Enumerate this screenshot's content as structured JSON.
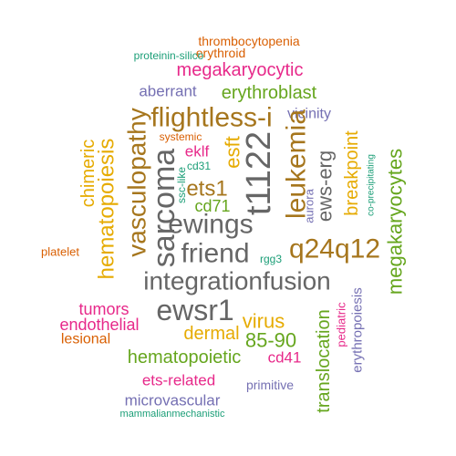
{
  "colors": {
    "orange": "#d95f02",
    "green": "#1b9e77",
    "magenta": "#e7298a",
    "purple": "#7570b3",
    "olive": "#66a61e",
    "gold": "#e6ab02",
    "brown": "#a6761d",
    "gray": "#666666"
  },
  "words": [
    {
      "text": "thrombocytopenia",
      "color": "orange"
    },
    {
      "text": "erythroid",
      "color": "orange"
    },
    {
      "text": "proteinin-silico",
      "color": "green"
    },
    {
      "text": "megakaryocytic",
      "color": "magenta"
    },
    {
      "text": "aberrant",
      "color": "purple"
    },
    {
      "text": "erythroblast",
      "color": "olive"
    },
    {
      "text": "flightless-i",
      "color": "brown"
    },
    {
      "text": "vicinity",
      "color": "purple"
    },
    {
      "text": "vasculopathy",
      "color": "brown"
    },
    {
      "text": "systemic",
      "color": "orange"
    },
    {
      "text": "eklf",
      "color": "magenta"
    },
    {
      "text": "esft",
      "color": "gold"
    },
    {
      "text": "t1122",
      "color": "gray"
    },
    {
      "text": "leukemia",
      "color": "brown"
    },
    {
      "text": "ews-erg",
      "color": "gray"
    },
    {
      "text": "breakpoint",
      "color": "gold"
    },
    {
      "text": "megakaryocytes",
      "color": "olive"
    },
    {
      "text": "co-precipitating",
      "color": "green"
    },
    {
      "text": "cd31",
      "color": "green"
    },
    {
      "text": "ssc-like",
      "color": "green"
    },
    {
      "text": "sarcoma",
      "color": "gray"
    },
    {
      "text": "ets1",
      "color": "brown"
    },
    {
      "text": "cd71",
      "color": "olive"
    },
    {
      "text": "aurora",
      "color": "purple"
    },
    {
      "text": "chimeric",
      "color": "gold"
    },
    {
      "text": "hematopoiesis",
      "color": "gold"
    },
    {
      "text": "ewings",
      "color": "gray"
    },
    {
      "text": "friend",
      "color": "gray"
    },
    {
      "text": "q24q12",
      "color": "brown"
    },
    {
      "text": "platelet",
      "color": "orange"
    },
    {
      "text": "rgg3",
      "color": "green"
    },
    {
      "text": "integrationfusion",
      "color": "gray"
    },
    {
      "text": "ewsr1",
      "color": "gray"
    },
    {
      "text": "tumors",
      "color": "magenta"
    },
    {
      "text": "endothelial",
      "color": "magenta"
    },
    {
      "text": "dermal",
      "color": "gold"
    },
    {
      "text": "virus",
      "color": "gold"
    },
    {
      "text": "lesional",
      "color": "orange"
    },
    {
      "text": "85-90",
      "color": "olive"
    },
    {
      "text": "translocation",
      "color": "olive"
    },
    {
      "text": "pediatric",
      "color": "magenta"
    },
    {
      "text": "erythropoiesis",
      "color": "purple"
    },
    {
      "text": "hematopoietic",
      "color": "olive"
    },
    {
      "text": "cd41",
      "color": "magenta"
    },
    {
      "text": "ets-related",
      "color": "magenta"
    },
    {
      "text": "primitive",
      "color": "purple"
    },
    {
      "text": "microvascular",
      "color": "purple"
    },
    {
      "text": "mammalianmechanistic",
      "color": "green"
    }
  ]
}
